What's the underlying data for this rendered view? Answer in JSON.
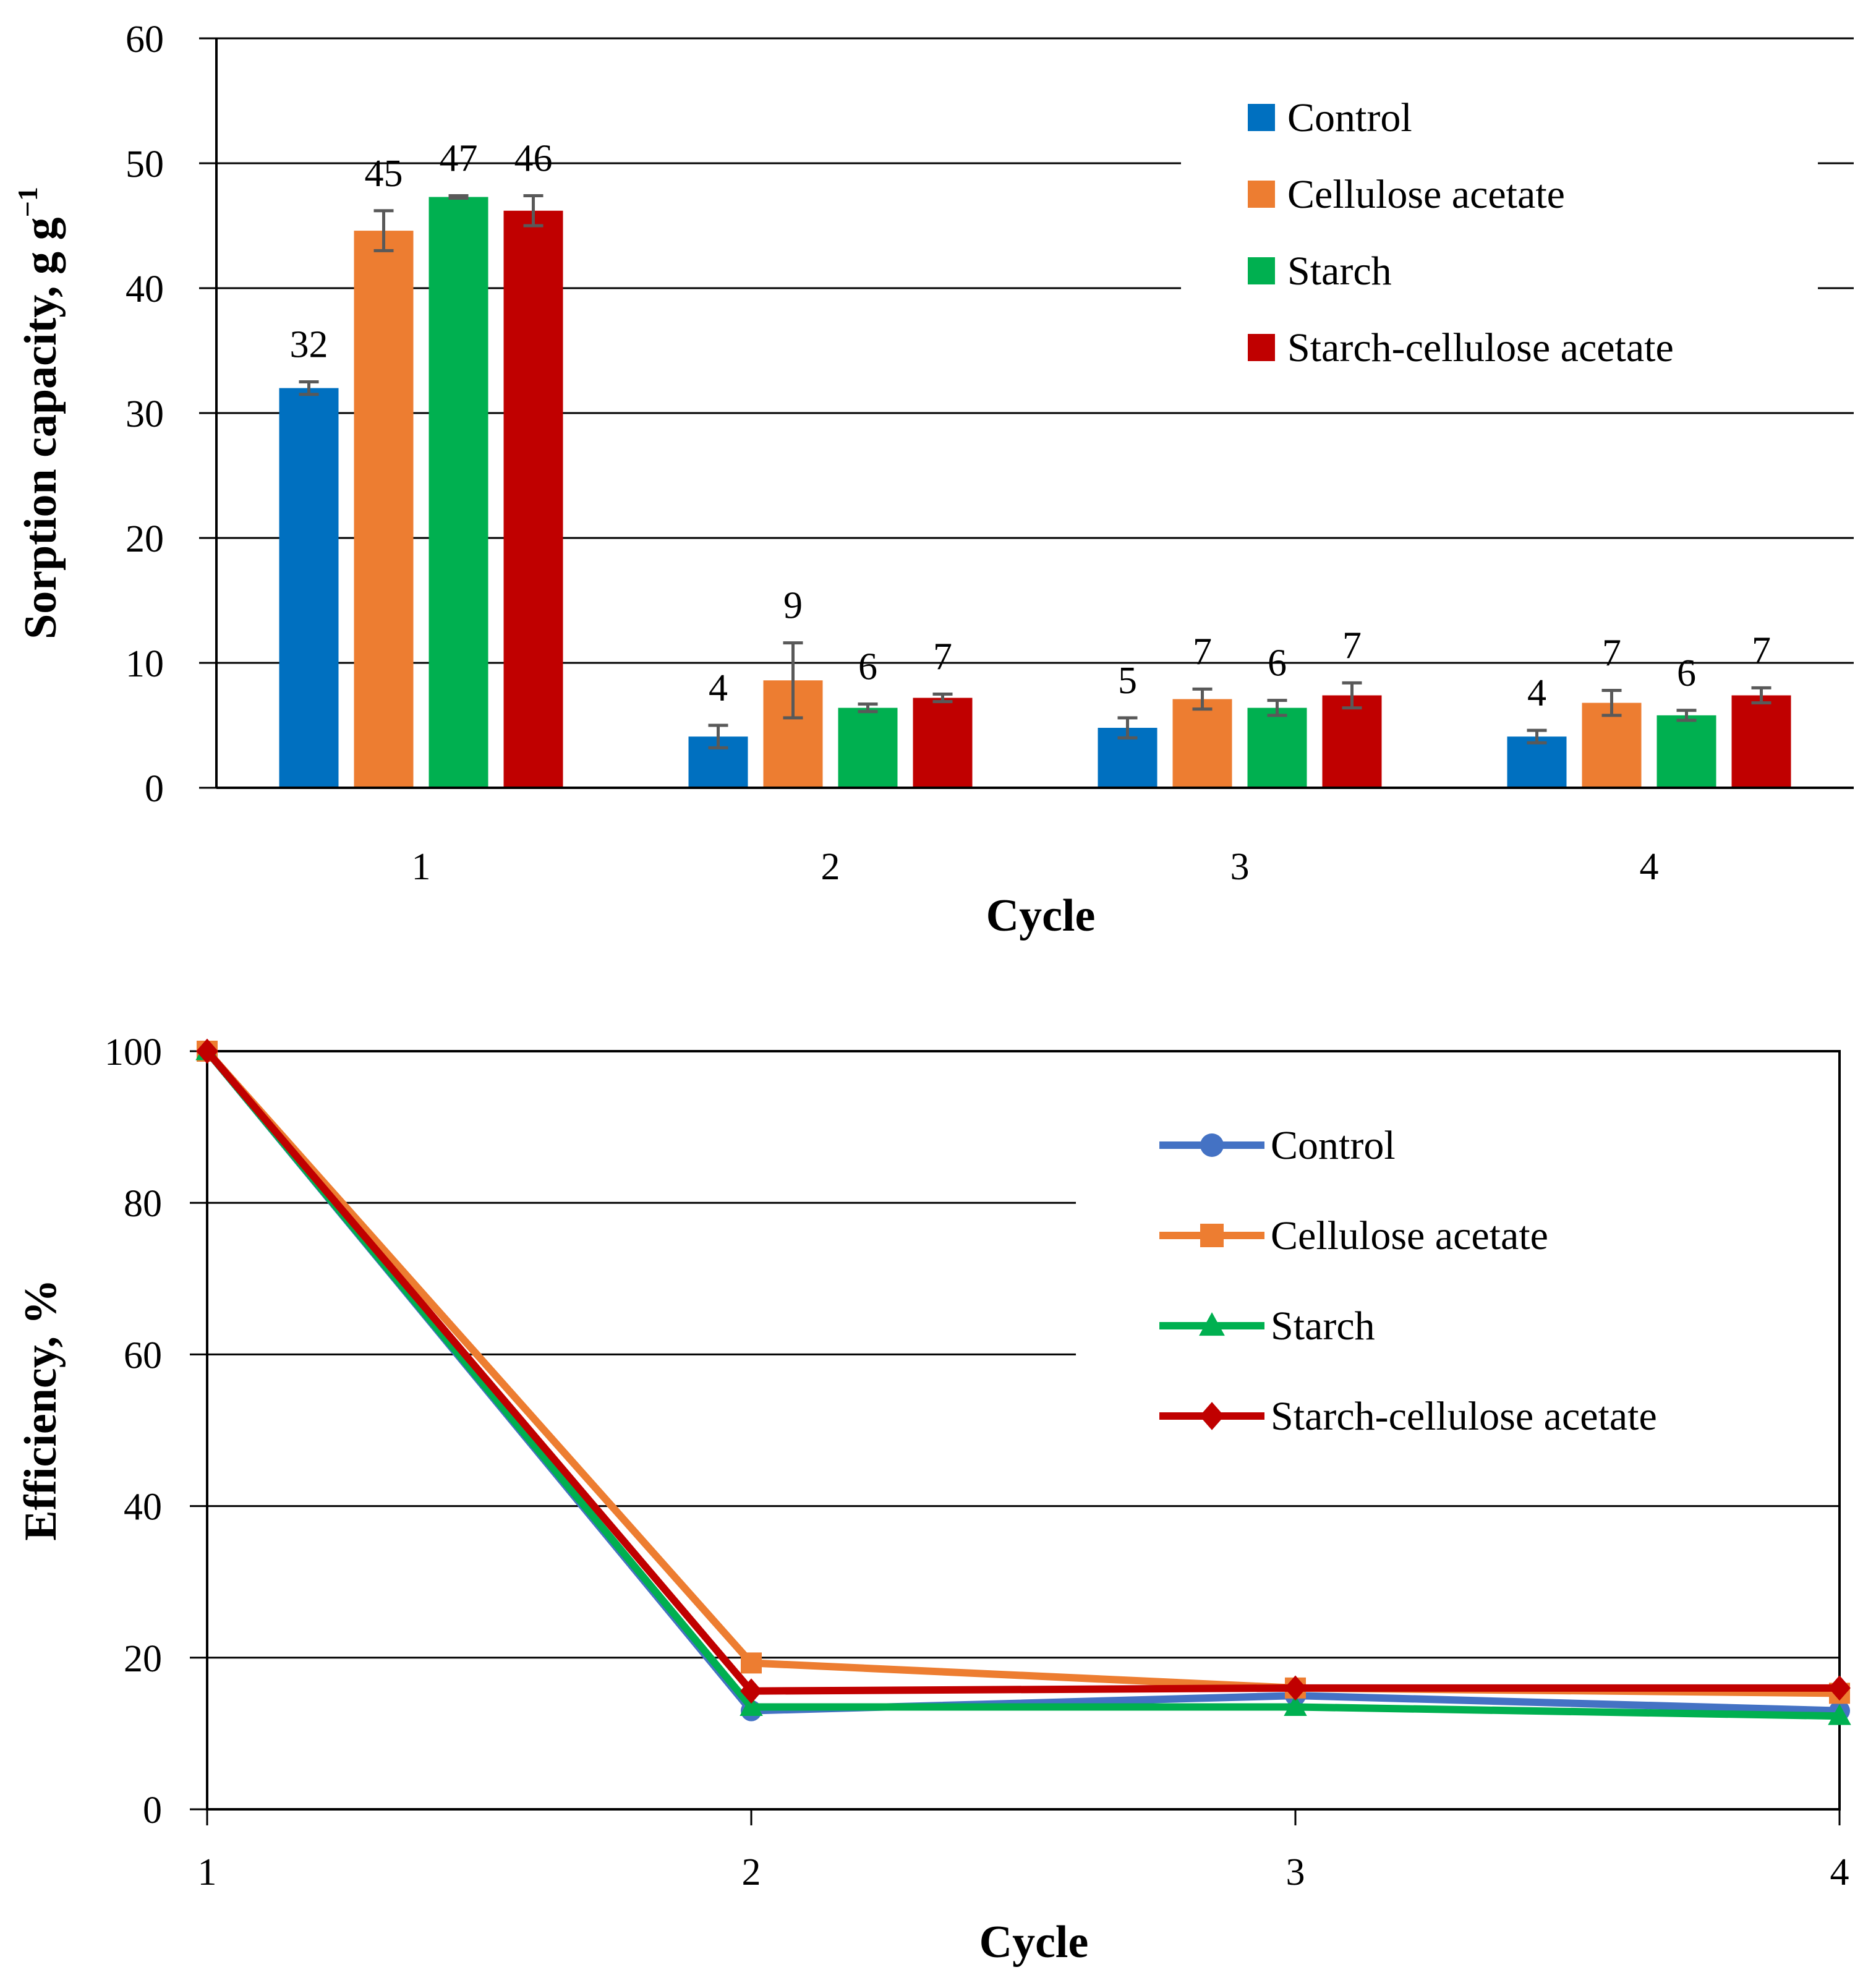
{
  "chart_data": [
    {
      "type": "bar",
      "title": "",
      "xlabel": "Cycle",
      "ylabel": "Sorption capacity, g g",
      "ylabel_sup": "−1",
      "categories": [
        "1",
        "2",
        "3",
        "4"
      ],
      "ylim": [
        0,
        60
      ],
      "yticks": [
        "0",
        "10",
        "20",
        "30",
        "40",
        "50",
        "60"
      ],
      "grid": true,
      "legend_position": "top-right",
      "series": [
        {
          "name": "Control",
          "color": "#0070C0",
          "values": [
            32.0,
            4.1,
            4.8,
            4.1
          ],
          "errors": [
            0.5,
            0.9,
            0.8,
            0.5
          ],
          "labels": [
            "32",
            "4",
            "5",
            "4"
          ]
        },
        {
          "name": "Cellulose acetate",
          "color": "#ED7D31",
          "values": [
            44.6,
            8.6,
            7.1,
            6.8
          ],
          "errors": [
            1.6,
            3.0,
            0.8,
            1.0
          ],
          "labels": [
            "45",
            "9",
            "7",
            "7"
          ]
        },
        {
          "name": "Starch",
          "color": "#00B050",
          "values": [
            47.3,
            6.4,
            6.4,
            5.8
          ],
          "errors": [
            0.1,
            0.3,
            0.6,
            0.4
          ],
          "labels": [
            "47",
            "6",
            "6",
            "6"
          ]
        },
        {
          "name": "Starch-cellulose acetate",
          "color": "#C00000",
          "values": [
            46.2,
            7.2,
            7.4,
            7.4
          ],
          "errors": [
            1.2,
            0.3,
            1.0,
            0.6
          ],
          "labels": [
            "46",
            "7",
            "7",
            "7"
          ]
        }
      ]
    },
    {
      "type": "line",
      "title": "",
      "xlabel": "Cycle",
      "ylabel": "Efficiency, %",
      "x": [
        "1",
        "2",
        "3",
        "4"
      ],
      "ylim": [
        0,
        100
      ],
      "yticks": [
        "0",
        "20",
        "40",
        "60",
        "80",
        "100"
      ],
      "grid": true,
      "legend_position": "top-right",
      "series": [
        {
          "name": "Control",
          "color": "#4472C4",
          "marker": "circle",
          "values": [
            100,
            13.0,
            15.0,
            13.0
          ]
        },
        {
          "name": "Cellulose acetate",
          "color": "#ED7D31",
          "marker": "square",
          "values": [
            100,
            19.3,
            16.0,
            15.3
          ]
        },
        {
          "name": "Starch",
          "color": "#00B050",
          "marker": "triangle",
          "values": [
            100,
            13.5,
            13.5,
            12.3
          ]
        },
        {
          "name": "Starch-cellulose acetate",
          "color": "#C00000",
          "marker": "diamond",
          "values": [
            100,
            15.6,
            16.0,
            16.0
          ]
        }
      ]
    }
  ]
}
